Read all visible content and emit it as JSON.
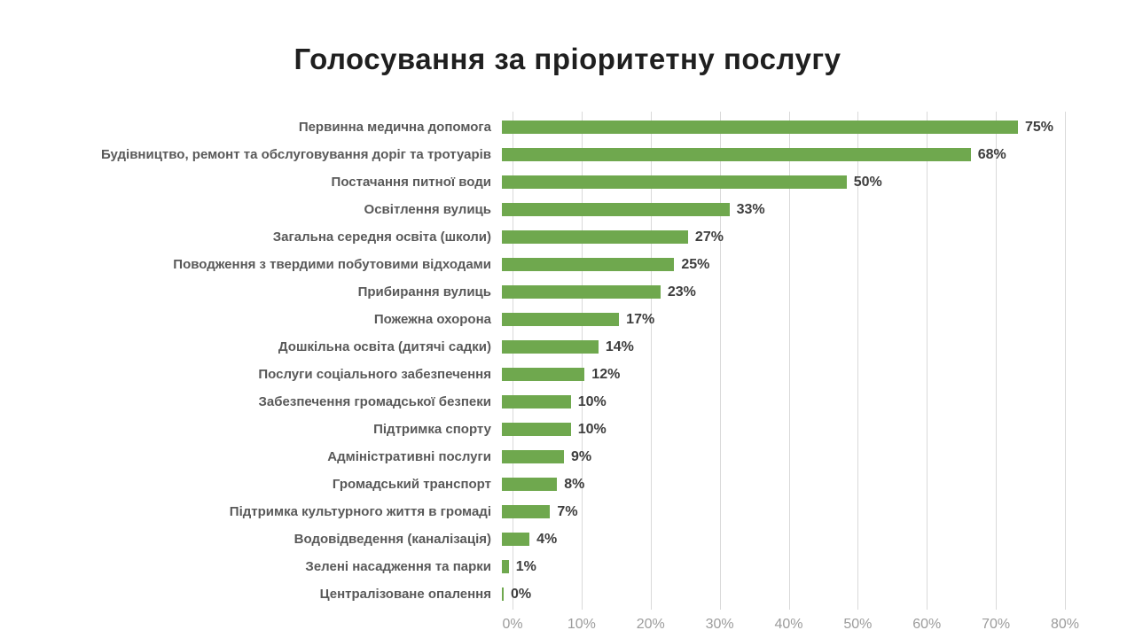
{
  "title": "Голосування за пріоритетну послугу",
  "chart_data": {
    "type": "bar",
    "orientation": "horizontal",
    "title": "Голосування за пріоритетну послугу",
    "categories": [
      "Первинна медична допомога",
      "Будівництво, ремонт та обслуговування доріг та тротуарів",
      "Постачання питної води",
      "Освітлення вулиць",
      "Загальна середня освіта (школи)",
      "Поводження з твердими побутовими відходами",
      "Прибирання вулиць",
      "Пожежна охорона",
      "Дошкільна освіта (дитячі садки)",
      "Послуги соціального забезпечення",
      "Забезпечення громадської безпеки",
      "Підтримка спорту",
      "Адміністративні послуги",
      "Громадський транспорт",
      "Підтримка культурного життя в громаді",
      "Водовідведення (каналізація)",
      "Зелені насадження та парки",
      "Централізоване опалення"
    ],
    "values": [
      75,
      68,
      50,
      33,
      27,
      25,
      23,
      17,
      14,
      12,
      10,
      10,
      9,
      8,
      7,
      4,
      1,
      0
    ],
    "value_labels": [
      "75%",
      "68%",
      "50%",
      "33%",
      "27%",
      "25%",
      "23%",
      "17%",
      "14%",
      "12%",
      "10%",
      "10%",
      "9%",
      "8%",
      "7%",
      "4%",
      "1%",
      "0%"
    ],
    "xlabel": "",
    "ylabel": "",
    "xlim": [
      0,
      80
    ],
    "x_ticks": [
      "0%",
      "10%",
      "20%",
      "30%",
      "40%",
      "50%",
      "60%",
      "70%",
      "80%"
    ],
    "grid": true,
    "legend": false,
    "colors": {
      "bar": "#6fa84e",
      "category_label": "#595959",
      "value_label": "#3d3d3d",
      "axis_tick": "#9c9c9c",
      "gridline": "#d9d9d9",
      "title": "#1f1f1f",
      "background": "#ffffff"
    }
  }
}
